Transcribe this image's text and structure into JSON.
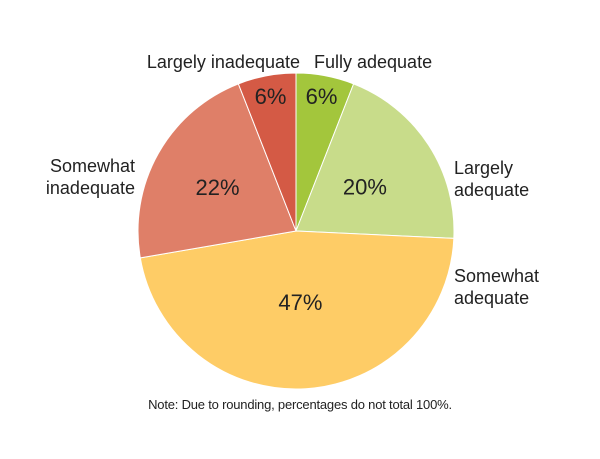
{
  "chart_data": {
    "type": "pie",
    "slices": [
      {
        "label": "Fully adequate",
        "label_lines": [
          "Fully adequate"
        ],
        "value": 6,
        "display": "6%",
        "color": "#a3c63c"
      },
      {
        "label": "Largely adequate",
        "label_lines": [
          "Largely",
          "adequate"
        ],
        "value": 20,
        "display": "20%",
        "color": "#c8dc8a"
      },
      {
        "label": "Somewhat adequate",
        "label_lines": [
          "Somewhat",
          "adequate"
        ],
        "value": 47,
        "display": "47%",
        "color": "#fecc66"
      },
      {
        "label": "Somewhat inadequate",
        "label_lines": [
          "Somewhat",
          "inadequate"
        ],
        "value": 22,
        "display": "22%",
        "color": "#df7f68"
      },
      {
        "label": "Largely inadequate",
        "label_lines": [
          "Largely inadequate"
        ],
        "value": 6,
        "display": "6%",
        "color": "#d45a45"
      }
    ],
    "note": "Note: Due to rounding, percentages do not total 100%."
  }
}
